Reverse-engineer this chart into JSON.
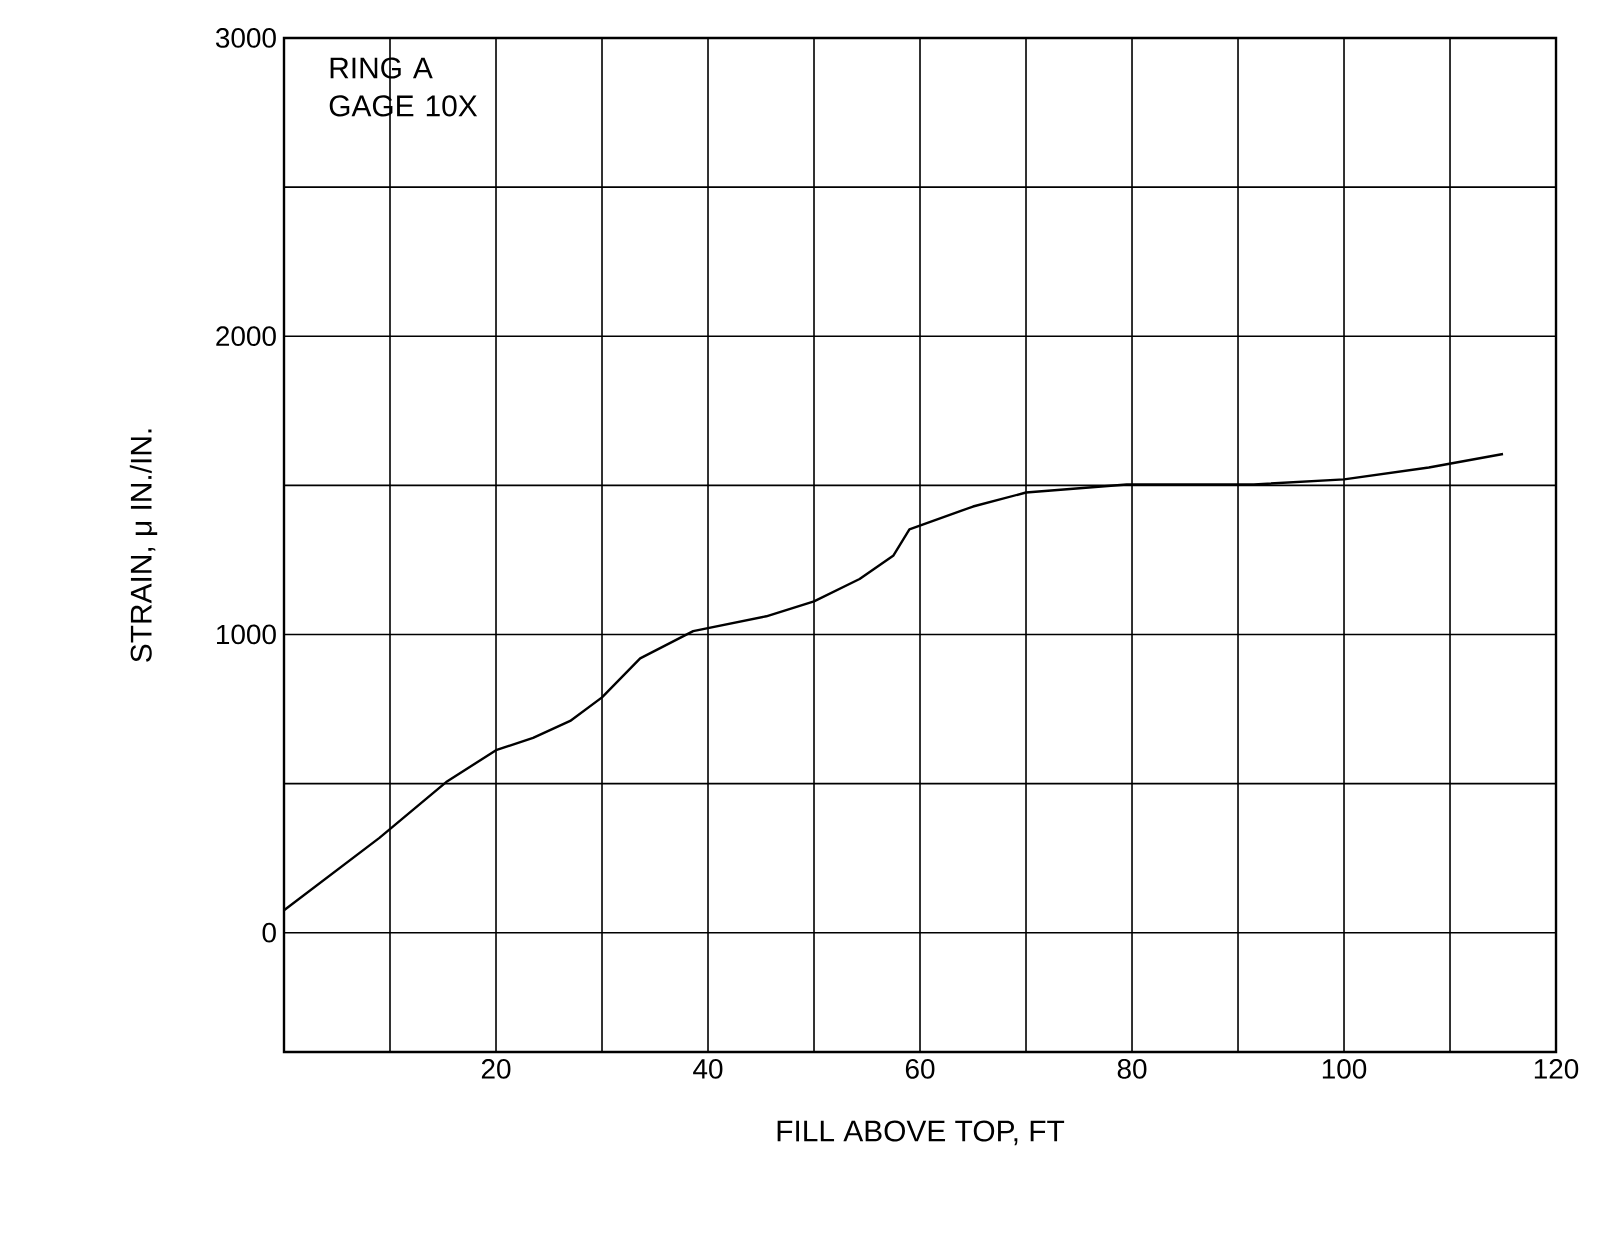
{
  "chart_data": {
    "type": "line",
    "xlabel": "FILL ABOVE TOP, FT",
    "ylabel": "STRAIN, μ IN./IN.",
    "annotations": [
      "RING A",
      "GAGE 10X"
    ],
    "x": [
      0,
      9,
      15.3,
      20,
      23.5,
      27,
      30,
      33.6,
      38.6,
      45.5,
      50,
      54.3,
      57.5,
      59,
      65,
      70,
      79.5,
      91.5,
      100,
      108,
      115
    ],
    "values": [
      75,
      318,
      505,
      612,
      653,
      710,
      789,
      920,
      1011,
      1061,
      1111,
      1186,
      1265,
      1352,
      1429,
      1476,
      1503,
      1503,
      1520,
      1560,
      1605
    ],
    "color": "#000000",
    "xlim": [
      0,
      120
    ],
    "ylim": [
      -400,
      3000
    ],
    "xticks": [
      {
        "value": 10,
        "label": null
      },
      20,
      {
        "value": 30,
        "label": null
      },
      40,
      {
        "value": 50,
        "label": null
      },
      60,
      {
        "value": 70,
        "label": null
      },
      80,
      {
        "value": 90,
        "label": null
      },
      100,
      {
        "value": 110,
        "label": null
      },
      120
    ],
    "yticks": [
      0,
      {
        "value": 500,
        "label": null
      },
      1000,
      {
        "value": 1500,
        "label": null
      },
      2000,
      {
        "value": 2500,
        "label": null
      },
      3000
    ],
    "grid": true
  }
}
